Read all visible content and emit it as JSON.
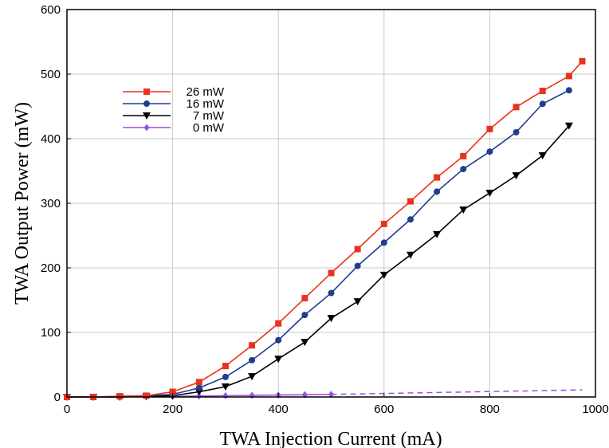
{
  "chart_data": {
    "type": "line",
    "xlabel": "TWA Injection Current (mA)",
    "ylabel": "TWA Output Power (mW)",
    "xlim": [
      0,
      1000
    ],
    "ylim": [
      0,
      600
    ],
    "x_ticks": [
      0,
      200,
      400,
      600,
      800,
      1000
    ],
    "y_ticks": [
      0,
      100,
      200,
      300,
      400,
      500,
      600
    ],
    "grid": true,
    "legend_position": "top-left",
    "series": [
      {
        "name": "26 mW",
        "color": "#e8321e",
        "marker": "square",
        "x": [
          0,
          50,
          100,
          150,
          200,
          250,
          300,
          350,
          400,
          450,
          500,
          550,
          600,
          650,
          700,
          750,
          800,
          850,
          900,
          950,
          975
        ],
        "y": [
          0,
          0,
          1,
          2,
          8,
          23,
          48,
          80,
          114,
          153,
          192,
          229,
          268,
          303,
          340,
          373,
          415,
          449,
          474,
          497,
          520
        ]
      },
      {
        "name": "16 mW",
        "color": "#1f3c8f",
        "marker": "circle",
        "x": [
          0,
          50,
          100,
          150,
          200,
          250,
          300,
          350,
          400,
          450,
          500,
          550,
          600,
          650,
          700,
          750,
          800,
          850,
          900,
          950
        ],
        "y": [
          0,
          0,
          1,
          2,
          4,
          14,
          31,
          57,
          88,
          127,
          161,
          203,
          239,
          275,
          318,
          353,
          380,
          410,
          454,
          475
        ]
      },
      {
        "name": "7 mW",
        "color": "#000000",
        "marker": "triangle-down",
        "x": [
          0,
          50,
          100,
          150,
          200,
          250,
          300,
          350,
          400,
          450,
          500,
          550,
          600,
          650,
          700,
          750,
          800,
          850,
          900,
          950
        ],
        "y": [
          0,
          0,
          0,
          1,
          2,
          8,
          16,
          32,
          59,
          85,
          122,
          148,
          189,
          220,
          252,
          290,
          316,
          343,
          374,
          420
        ]
      },
      {
        "name": "0 mW",
        "color": "#9b4de8",
        "marker": "diamond",
        "x": [
          0,
          50,
          100,
          150,
          200,
          250,
          300,
          350,
          400,
          450,
          500
        ],
        "y": [
          0,
          0,
          0,
          0.5,
          1,
          1.5,
          2,
          2.5,
          3,
          3.5,
          4
        ]
      }
    ],
    "extrapolation": {
      "series": "0 mW",
      "style": "dashed",
      "color": "#9b4de8",
      "x": [
        500,
        975
      ],
      "y": [
        4,
        11
      ]
    }
  }
}
